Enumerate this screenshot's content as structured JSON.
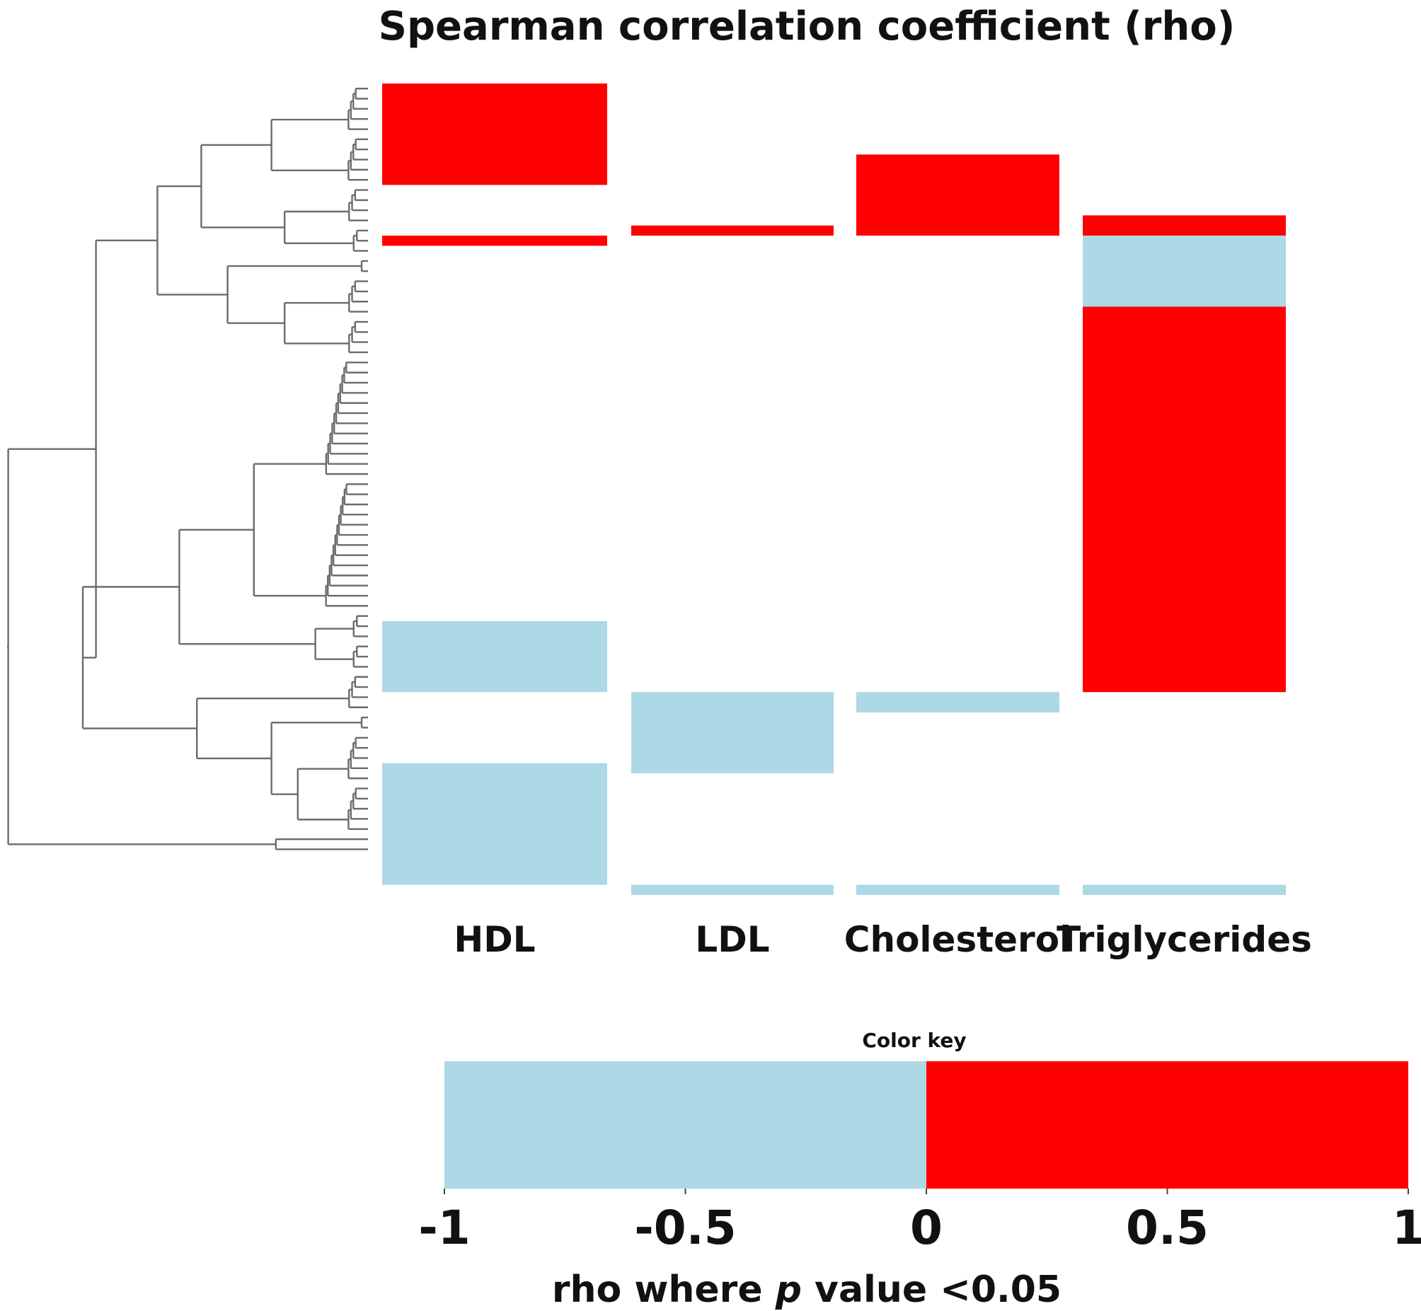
{
  "chart_data": {
    "type": "heatmap",
    "title": "Spearman correlation coefficient (rho)",
    "columns": [
      "HDL",
      "LDL",
      "Cholesterol",
      "Triglycerides"
    ],
    "row_count": 80,
    "row_dendrogram": true,
    "cells": [
      {
        "column": "HDL",
        "rows": [
          0,
          9
        ],
        "rho_sign": "positive"
      },
      {
        "column": "HDL",
        "rows": [
          15,
          15
        ],
        "rho_sign": "positive"
      },
      {
        "column": "HDL",
        "rows": [
          53,
          59
        ],
        "rho_sign": "negative"
      },
      {
        "column": "HDL",
        "rows": [
          67,
          78
        ],
        "rho_sign": "negative"
      },
      {
        "column": "LDL",
        "rows": [
          14,
          14
        ],
        "rho_sign": "positive"
      },
      {
        "column": "LDL",
        "rows": [
          60,
          67
        ],
        "rho_sign": "negative"
      },
      {
        "column": "LDL",
        "rows": [
          79,
          79
        ],
        "rho_sign": "negative"
      },
      {
        "column": "Cholesterol",
        "rows": [
          7,
          14
        ],
        "rho_sign": "positive"
      },
      {
        "column": "Cholesterol",
        "rows": [
          60,
          61
        ],
        "rho_sign": "negative"
      },
      {
        "column": "Cholesterol",
        "rows": [
          79,
          79
        ],
        "rho_sign": "negative"
      },
      {
        "column": "Triglycerides",
        "rows": [
          13,
          14
        ],
        "rho_sign": "positive"
      },
      {
        "column": "Triglycerides",
        "rows": [
          15,
          21
        ],
        "rho_sign": "negative"
      },
      {
        "column": "Triglycerides",
        "rows": [
          22,
          59
        ],
        "rho_sign": "positive"
      },
      {
        "column": "Triglycerides",
        "rows": [
          79,
          79
        ],
        "rho_sign": "negative"
      }
    ],
    "colors": {
      "negative": "#add8e6",
      "positive": "#ff0000"
    },
    "color_key": {
      "title": "Color key",
      "range": [
        -1,
        1
      ],
      "ticks": [
        -1,
        -0.5,
        0,
        0.5,
        1
      ],
      "tick_labels": [
        "-1",
        "-0.5",
        "0",
        "0.5",
        "1"
      ],
      "xlabel_prefix": "rho where ",
      "xlabel_italic": "p",
      "xlabel_suffix": " value <0.05"
    }
  }
}
